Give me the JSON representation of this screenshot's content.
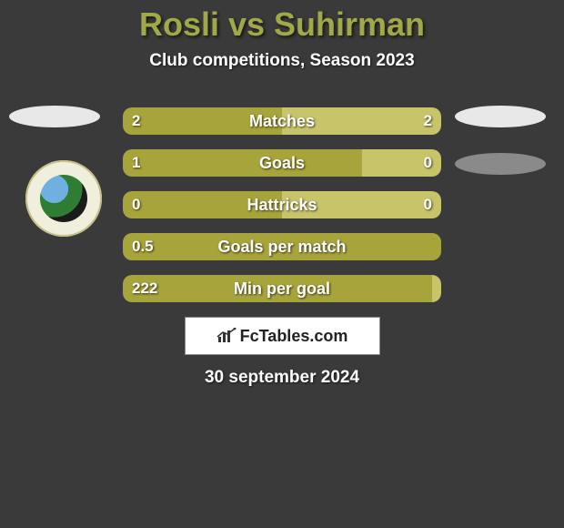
{
  "title_color": "#a0a848",
  "title": "Rosli vs Suhirman",
  "subtitle": "Club competitions, Season 2023",
  "side_ellipses": {
    "left_color": "#e8e8e8",
    "right_color": "#e8e8e8",
    "second_right_color": "#8a8a8a"
  },
  "bar_colors": {
    "left": "#a7a43b",
    "right": "#c7c46a",
    "track": "#5a5a5a"
  },
  "stats": [
    {
      "label": "Matches",
      "left_val": "2",
      "right_val": "2",
      "left_pct": 50,
      "right_pct": 50
    },
    {
      "label": "Goals",
      "left_val": "1",
      "right_val": "0",
      "left_pct": 75,
      "right_pct": 25
    },
    {
      "label": "Hattricks",
      "left_val": "0",
      "right_val": "0",
      "left_pct": 50,
      "right_pct": 50
    },
    {
      "label": "Goals per match",
      "left_val": "0.5",
      "right_val": "",
      "left_pct": 100,
      "right_pct": 0
    },
    {
      "label": "Min per goal",
      "left_val": "222",
      "right_val": "",
      "left_pct": 97,
      "right_pct": 3
    }
  ],
  "brand": "FcTables.com",
  "date": "30 september 2024"
}
